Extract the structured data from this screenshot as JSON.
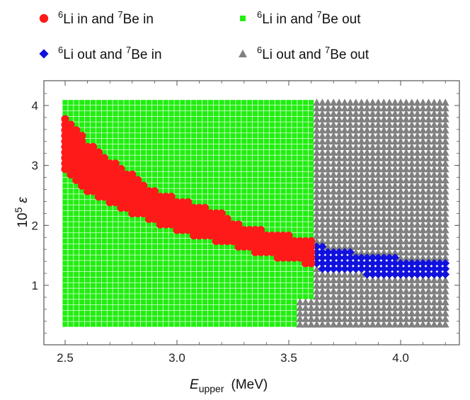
{
  "chart_data": {
    "type": "scatter",
    "title": "",
    "xlabel": "E",
    "xlabel_sub": "upper",
    "xlabel_unit": "(MeV)",
    "ylabel": "10",
    "ylabel_sup": "5",
    "ylabel_sym": "ε",
    "xlim": [
      2.4,
      4.25
    ],
    "ylim": [
      0,
      4.4
    ],
    "xticks": [
      2.5,
      3.0,
      3.5,
      4.0
    ],
    "xtick_labels": [
      "2.5",
      "3.0",
      "3.5",
      "4.0"
    ],
    "yticks": [
      1,
      2,
      3,
      4
    ],
    "ytick_labels": [
      "1",
      "2",
      "3",
      "4"
    ],
    "grid": false,
    "legend_position": "top",
    "grid_x": {
      "start": 2.5,
      "end": 4.2,
      "step": 0.025
    },
    "grid_y": {
      "start": 0.35,
      "end": 4.05,
      "step": 0.0925
    },
    "series": [
      {
        "key": "in_in",
        "marker": "circle",
        "color": "#ff1a1a",
        "label_parts": [
          "6",
          "Li in and ",
          "7",
          "Be in"
        ],
        "region": "Band from about (2.5, 2.9–3.8) narrowing down to about (3.6, 1.35–1.75)",
        "boundary_x": [
          2.5,
          2.55,
          2.6,
          2.7,
          2.8,
          2.9,
          3.0,
          3.1,
          3.2,
          3.3,
          3.4,
          3.5,
          3.6
        ],
        "boundary_lower": [
          2.9,
          2.7,
          2.55,
          2.35,
          2.2,
          2.05,
          1.9,
          1.8,
          1.7,
          1.6,
          1.5,
          1.4,
          1.35
        ],
        "boundary_upper": [
          3.8,
          3.6,
          3.4,
          3.1,
          2.85,
          2.6,
          2.45,
          2.35,
          2.2,
          2.0,
          1.9,
          1.85,
          1.75
        ]
      },
      {
        "key": "in_out",
        "marker": "square",
        "color": "#22ee11",
        "label_parts": [
          "6",
          "Li in and ",
          "7",
          "Be out"
        ],
        "region": "Remaining points for E_upper ≤ 3.6"
      },
      {
        "key": "out_in",
        "marker": "diamond",
        "color": "#1111dd",
        "label_parts": [
          "6",
          "Li out and ",
          "7",
          "Be in"
        ],
        "region": "Band for E_upper 3.6–4.2, epsilon about 1.1–1.7",
        "boundary_x": [
          3.6,
          3.7,
          3.8,
          3.9,
          4.0,
          4.1,
          4.2
        ],
        "boundary_lower": [
          1.3,
          1.25,
          1.2,
          1.15,
          1.1,
          1.1,
          1.1
        ],
        "boundary_upper": [
          1.75,
          1.6,
          1.55,
          1.5,
          1.45,
          1.4,
          1.4
        ]
      },
      {
        "key": "out_out",
        "marker": "triangle",
        "color": "#808080",
        "label_parts": [
          "6",
          "Li out and ",
          "7",
          "Be out"
        ],
        "region": "Remaining points for E_upper ≥ 3.55, plus a small sliver near (3.55, 0.4–0.7)"
      }
    ]
  }
}
